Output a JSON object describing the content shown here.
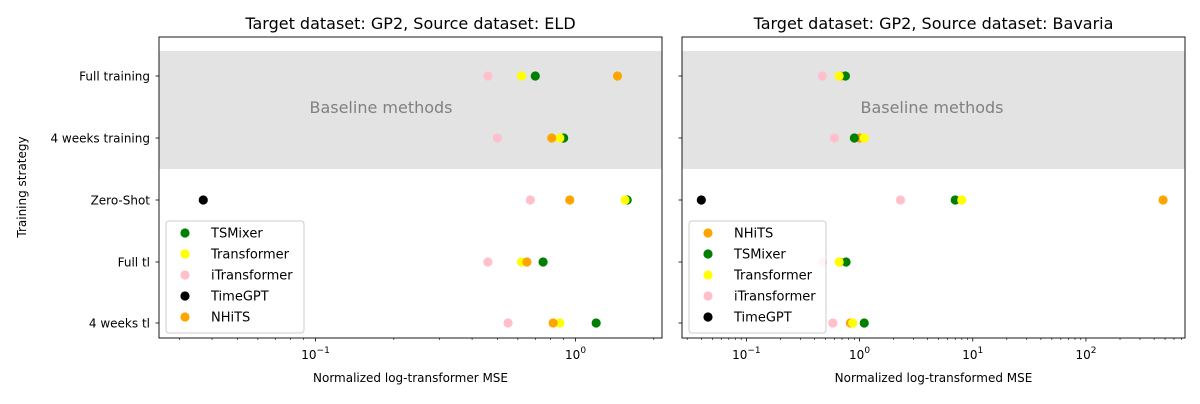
{
  "figure": {
    "ylabel": "Training strategy"
  },
  "chart_data": [
    {
      "type": "scatter",
      "title": "Target dataset: GP2, Source dataset: ELD",
      "xlabel": "Normalized log-transformer MSE",
      "ylabel": "Training strategy",
      "xscale": "log",
      "xlim": [
        0.025,
        2.15
      ],
      "x_ticks": [
        {
          "value": 0.1,
          "label": "10",
          "exp": "−1"
        },
        {
          "value": 1,
          "label": "10",
          "exp": "0"
        }
      ],
      "categories": [
        "Full training",
        "4 weeks training",
        "Zero-Shot",
        "Full tl",
        "4 weeks tl"
      ],
      "shaded_band": {
        "label": "Baseline methods",
        "categories": [
          "Full training",
          "4 weeks training"
        ],
        "color": "#e3e3e3"
      },
      "legend_position": "lower-left",
      "series": [
        {
          "name": "TSMixer",
          "color": "#008000",
          "values": [
            0.7,
            0.9,
            1.58,
            0.75,
            1.2
          ]
        },
        {
          "name": "Transformer",
          "color": "#ffff00",
          "values": [
            0.62,
            0.87,
            1.55,
            0.62,
            0.87
          ]
        },
        {
          "name": "iTransformer",
          "color": "#ffc0cb",
          "values": [
            0.46,
            0.5,
            0.67,
            0.46,
            0.55
          ]
        },
        {
          "name": "TimeGPT",
          "color": "#000000",
          "values": [
            null,
            null,
            0.037,
            null,
            null
          ]
        },
        {
          "name": "NHiTS",
          "color": "#ffa500",
          "values": [
            1.45,
            0.81,
            0.95,
            0.65,
            0.82
          ]
        }
      ]
    },
    {
      "type": "scatter",
      "title": "Target dataset: GP2, Source dataset: Bavaria",
      "xlabel": "Normalized log-transformed MSE",
      "xscale": "log",
      "xlim": [
        0.027,
        750
      ],
      "x_ticks": [
        {
          "value": 0.1,
          "label": "10",
          "exp": "−1"
        },
        {
          "value": 1,
          "label": "10",
          "exp": "0"
        },
        {
          "value": 10,
          "label": "10",
          "exp": "1"
        },
        {
          "value": 100,
          "label": "10",
          "exp": "2"
        }
      ],
      "categories": [
        "Full training",
        "4 weeks training",
        "Zero-Shot",
        "Full tl",
        "4 weeks tl"
      ],
      "shaded_band": {
        "label": "Baseline methods",
        "categories": [
          "Full training",
          "4 weeks training"
        ],
        "color": "#e3e3e3"
      },
      "legend_position": "lower-left",
      "series": [
        {
          "name": "NHiTS",
          "color": "#ffa500",
          "values": [
            0.68,
            1.0,
            480,
            0.67,
            0.83
          ]
        },
        {
          "name": "TSMixer",
          "color": "#008000",
          "values": [
            0.75,
            0.9,
            7.0,
            0.76,
            1.1
          ]
        },
        {
          "name": "Transformer",
          "color": "#ffff00",
          "values": [
            0.66,
            1.1,
            8.0,
            0.66,
            0.87
          ]
        },
        {
          "name": "iTransformer",
          "color": "#ffc0cb",
          "values": [
            0.47,
            0.6,
            2.3,
            0.47,
            0.58
          ]
        },
        {
          "name": "TimeGPT",
          "color": "#000000",
          "values": [
            null,
            null,
            0.04,
            null,
            null
          ]
        }
      ]
    }
  ]
}
